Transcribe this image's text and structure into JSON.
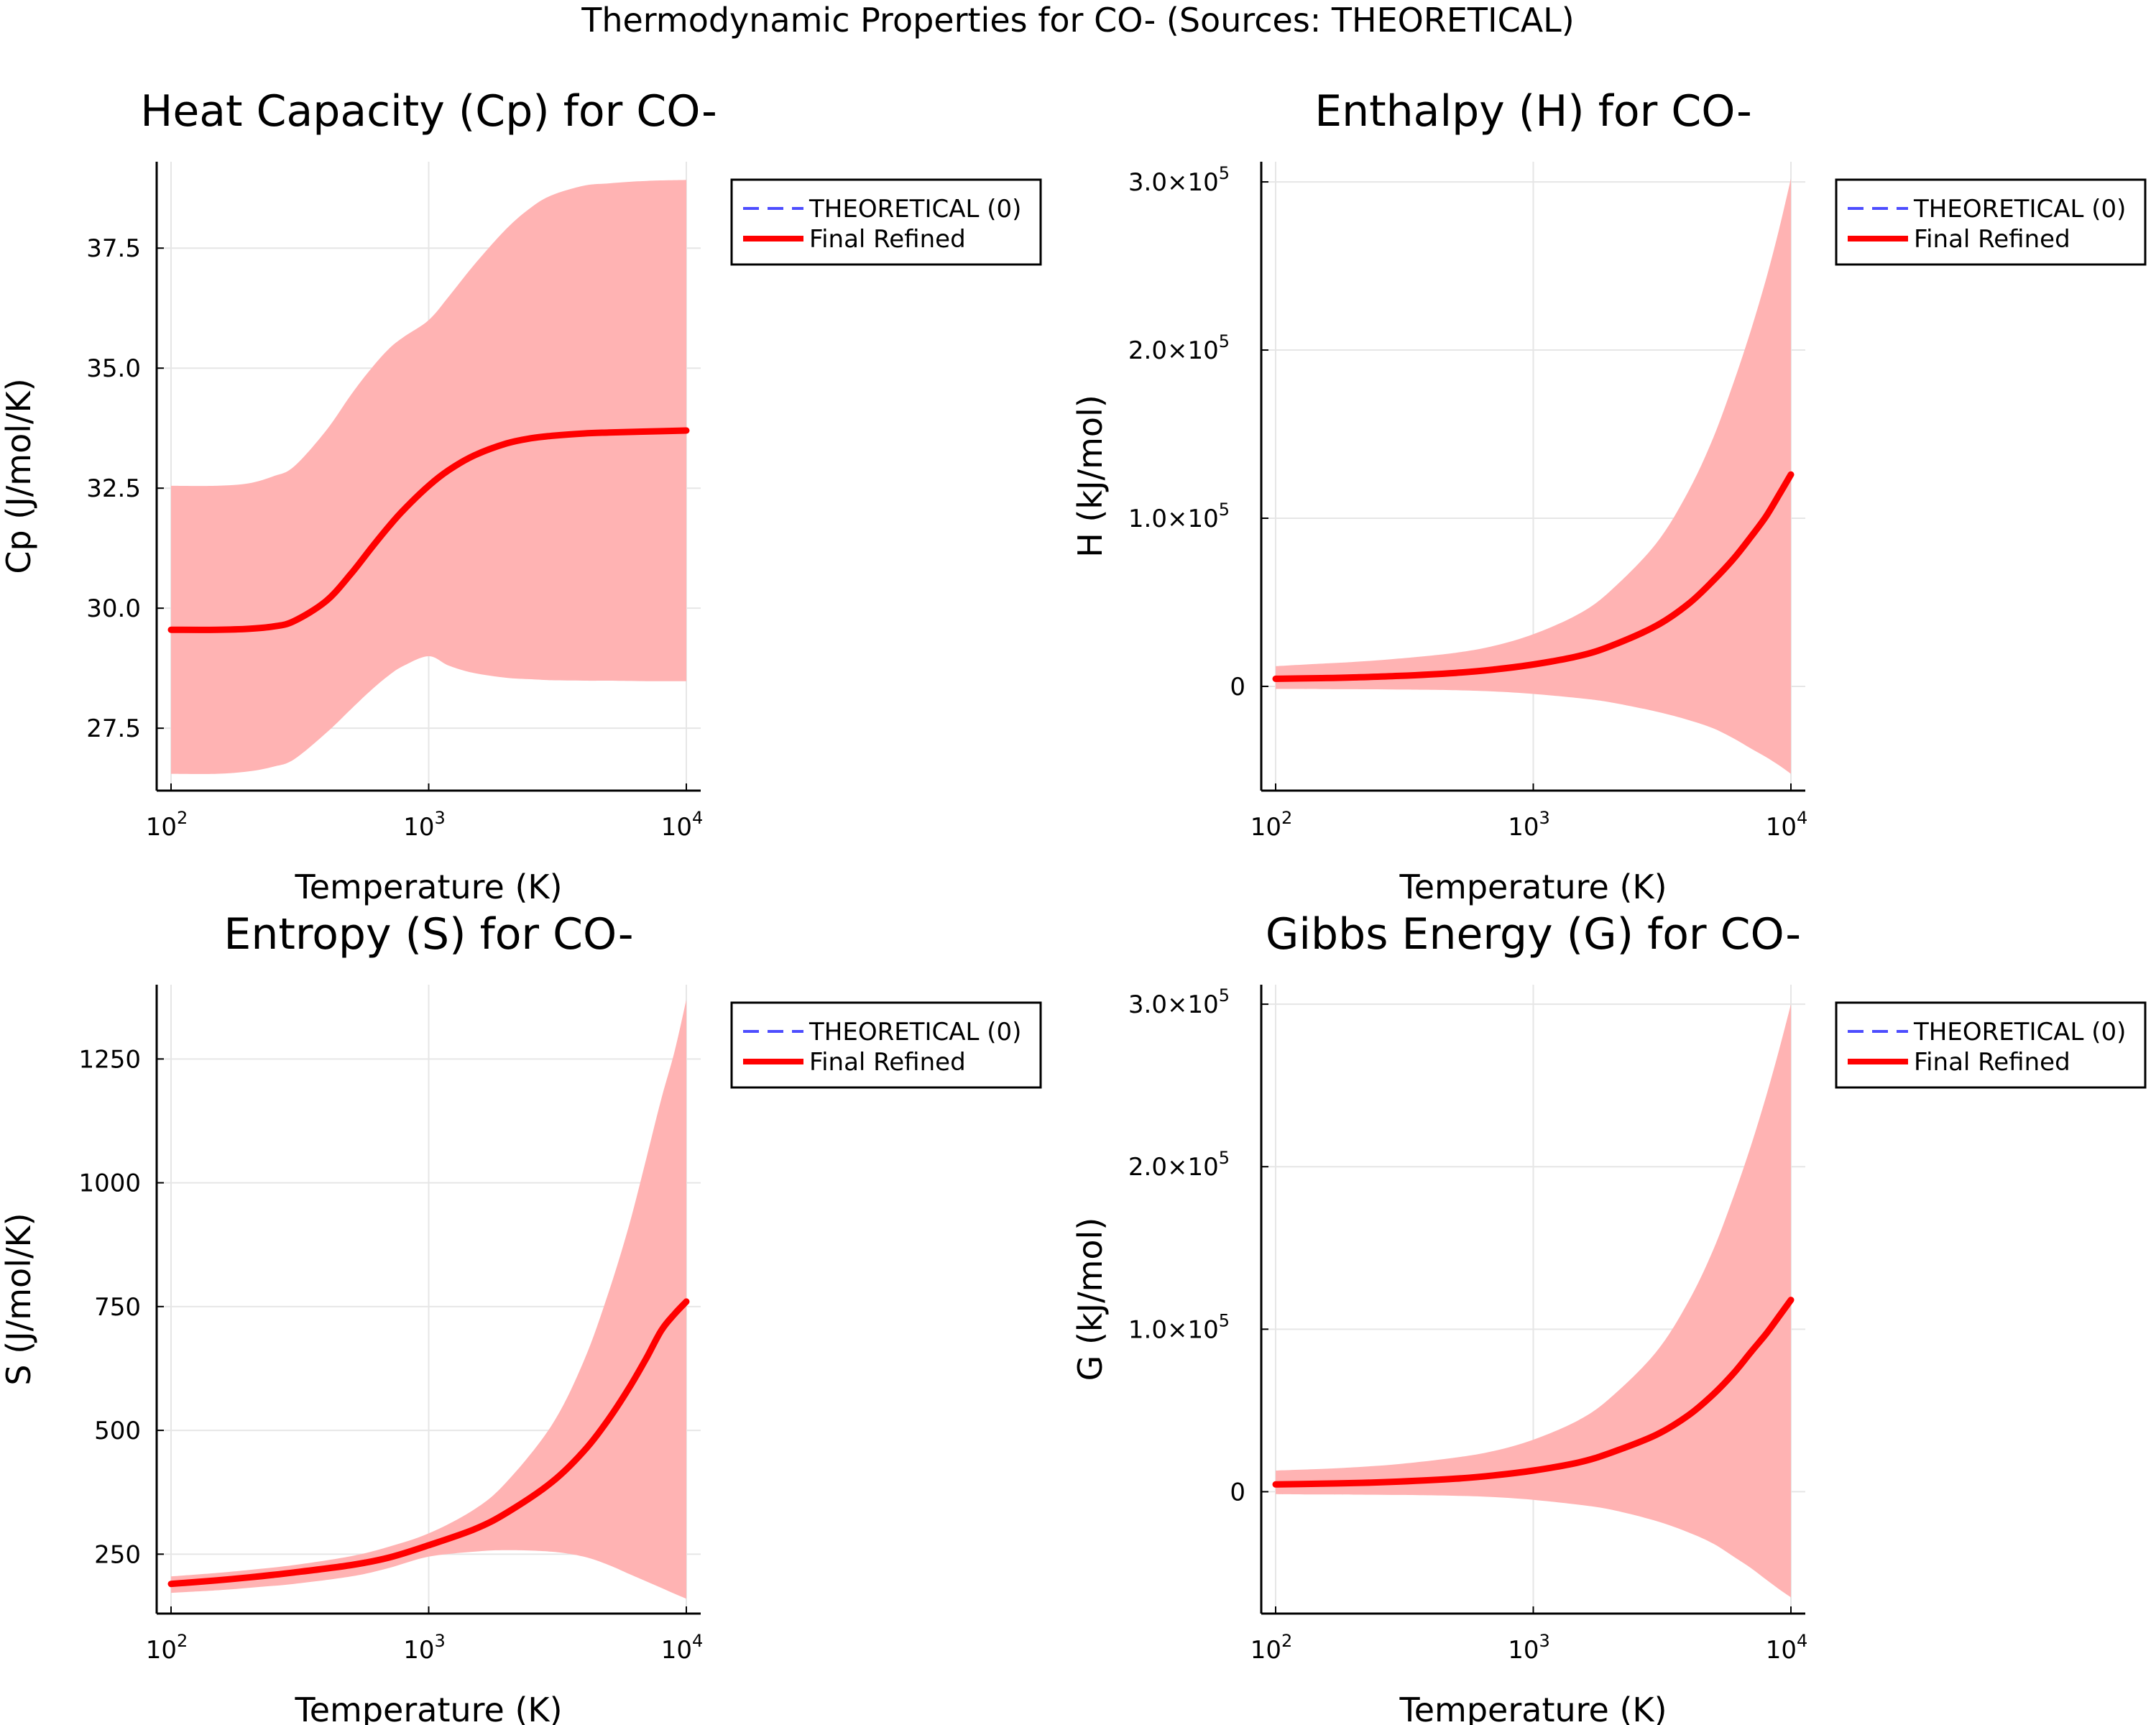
{
  "suptitle": "Thermodynamic Properties for CO- (Sources: THEORETICAL)",
  "colors": {
    "refined": "#ff0000",
    "band": "#ffb3b3",
    "theoretical": "#4d4dff",
    "grid": "#e6e6e6"
  },
  "legend_position": "outer-top-right",
  "chart_data": [
    {
      "type": "line",
      "title": "Heat Capacity (Cp) for CO-",
      "xlabel": "Temperature (K)",
      "ylabel": "Cp (J/mol/K)",
      "xscale": "log",
      "xlim": [
        100,
        10000
      ],
      "ylim": [
        26.2,
        39.3
      ],
      "xticks": [
        {
          "base": "10",
          "exp": "2"
        },
        {
          "base": "10",
          "exp": "3"
        },
        {
          "base": "10",
          "exp": "4"
        }
      ],
      "yticks": [
        {
          "v": 27.5,
          "label": "27.5"
        },
        {
          "v": 30.0,
          "label": "30.0"
        },
        {
          "v": 32.5,
          "label": "32.5"
        },
        {
          "v": 35.0,
          "label": "35.0"
        },
        {
          "v": 37.5,
          "label": "37.5"
        }
      ],
      "grid": true,
      "legend": [
        "THEORETICAL (0)",
        "Final Refined"
      ],
      "series": [
        {
          "name": "Final Refined",
          "style": "solid",
          "x": [
            100,
            150,
            200,
            250,
            300,
            400,
            500,
            600,
            700,
            800,
            1000,
            1200,
            1500,
            2000,
            2500,
            3000,
            4000,
            5000,
            7000,
            10000
          ],
          "y": [
            29.55,
            29.55,
            29.57,
            29.62,
            29.73,
            30.15,
            30.72,
            31.26,
            31.7,
            32.05,
            32.55,
            32.88,
            33.18,
            33.43,
            33.54,
            33.59,
            33.64,
            33.66,
            33.68,
            33.7
          ]
        },
        {
          "name": "THEORETICAL (0)",
          "style": "dashed",
          "x": [],
          "y": []
        }
      ],
      "band": {
        "x": [
          100,
          150,
          200,
          250,
          300,
          400,
          500,
          600,
          700,
          800,
          1000,
          1200,
          1500,
          2000,
          2500,
          3000,
          4000,
          5000,
          7000,
          10000
        ],
        "upper": [
          32.55,
          32.55,
          32.6,
          32.75,
          32.95,
          33.7,
          34.45,
          35.0,
          35.4,
          35.65,
          36.0,
          36.5,
          37.15,
          37.9,
          38.35,
          38.6,
          38.8,
          38.85,
          38.9,
          38.92
        ],
        "lower": [
          26.55,
          26.55,
          26.6,
          26.7,
          26.85,
          27.4,
          27.9,
          28.3,
          28.6,
          28.8,
          29.0,
          28.8,
          28.65,
          28.55,
          28.52,
          28.5,
          28.49,
          28.49,
          28.48,
          28.48
        ]
      }
    },
    {
      "type": "line",
      "title": "Enthalpy (H) for CO-",
      "xlabel": "Temperature (K)",
      "ylabel": "H (kJ/mol)",
      "xscale": "log",
      "xlim": [
        100,
        10000
      ],
      "ylim": [
        -62000,
        312000
      ],
      "xticks": [
        {
          "base": "10",
          "exp": "2"
        },
        {
          "base": "10",
          "exp": "3"
        },
        {
          "base": "10",
          "exp": "4"
        }
      ],
      "yticks": [
        {
          "v": 0,
          "label": "0"
        },
        {
          "v": 100000,
          "label": "1.0×10",
          "sup": "5"
        },
        {
          "v": 200000,
          "label": "2.0×10",
          "sup": "5"
        },
        {
          "v": 300000,
          "label": "3.0×10",
          "sup": "5"
        }
      ],
      "grid": true,
      "legend": [
        "THEORETICAL (0)",
        "Final Refined"
      ],
      "series": [
        {
          "name": "Final Refined",
          "style": "solid",
          "x": [
            100,
            150,
            200,
            300,
            500,
            700,
            1000,
            1500,
            2000,
            3000,
            4000,
            5000,
            6000,
            7000,
            8000,
            9000,
            10000
          ],
          "y": [
            4500,
            4900,
            5300,
            6200,
            8000,
            10000,
            13000,
            18000,
            24000,
            36000,
            49000,
            63000,
            76000,
            89000,
            101000,
            114000,
            126000
          ]
        },
        {
          "name": "THEORETICAL (0)",
          "style": "dashed",
          "x": [],
          "y": []
        }
      ],
      "band": {
        "x": [
          100,
          150,
          200,
          300,
          500,
          700,
          1000,
          1500,
          2000,
          3000,
          4000,
          5000,
          6000,
          7000,
          8000,
          9000,
          10000
        ],
        "upper": [
          12000,
          13500,
          14500,
          16500,
          20000,
          24000,
          31000,
          43000,
          57000,
          85000,
          116000,
          148000,
          181000,
          212000,
          242000,
          272000,
          302000
        ],
        "lower": [
          -1500,
          -1600,
          -1700,
          -1900,
          -2300,
          -3000,
          -4500,
          -7000,
          -9500,
          -15000,
          -20000,
          -25000,
          -31000,
          -37000,
          -42000,
          -47000,
          -52000
        ]
      }
    },
    {
      "type": "line",
      "title": "Entropy (S) for CO-",
      "xlabel": "Temperature (K)",
      "ylabel": "S (J/mol/K)",
      "xscale": "log",
      "xlim": [
        100,
        10000
      ],
      "ylim": [
        130,
        1400
      ],
      "xticks": [
        {
          "base": "10",
          "exp": "2"
        },
        {
          "base": "10",
          "exp": "3"
        },
        {
          "base": "10",
          "exp": "4"
        }
      ],
      "yticks": [
        {
          "v": 250,
          "label": "250"
        },
        {
          "v": 500,
          "label": "500"
        },
        {
          "v": 750,
          "label": "750"
        },
        {
          "v": 1000,
          "label": "1000"
        },
        {
          "v": 1250,
          "label": "1250"
        }
      ],
      "grid": true,
      "legend": [
        "THEORETICAL (0)",
        "Final Refined"
      ],
      "series": [
        {
          "name": "Final Refined",
          "style": "solid",
          "x": [
            100,
            150,
            200,
            300,
            500,
            700,
            1000,
            1500,
            2000,
            3000,
            4000,
            5000,
            6000,
            7000,
            8000,
            9000,
            10000
          ],
          "y": [
            190,
            197,
            203,
            213,
            228,
            243,
            268,
            300,
            333,
            395,
            458,
            523,
            586,
            646,
            702,
            735,
            760
          ]
        },
        {
          "name": "THEORETICAL (0)",
          "style": "dashed",
          "x": [],
          "y": []
        }
      ],
      "band": {
        "x": [
          100,
          150,
          200,
          300,
          500,
          700,
          1000,
          1500,
          2000,
          3000,
          4000,
          5000,
          6000,
          7000,
          8000,
          9000,
          10000
        ],
        "upper": [
          205,
          212,
          218,
          228,
          246,
          265,
          292,
          340,
          395,
          510,
          640,
          780,
          915,
          1050,
          1170,
          1265,
          1370
        ],
        "lower": [
          172,
          177,
          182,
          190,
          205,
          222,
          245,
          255,
          258,
          255,
          245,
          228,
          210,
          195,
          182,
          170,
          160
        ]
      }
    },
    {
      "type": "line",
      "title": "Gibbs Energy (G) for CO-",
      "xlabel": "Temperature (K)",
      "ylabel": "G (kJ/mol)",
      "xscale": "log",
      "xlim": [
        100,
        10000
      ],
      "ylim": [
        -75000,
        312000
      ],
      "xticks": [
        {
          "base": "10",
          "exp": "2"
        },
        {
          "base": "10",
          "exp": "3"
        },
        {
          "base": "10",
          "exp": "4"
        }
      ],
      "yticks": [
        {
          "v": 0,
          "label": "0"
        },
        {
          "v": 100000,
          "label": "1.0×10",
          "sup": "5"
        },
        {
          "v": 200000,
          "label": "2.0×10",
          "sup": "5"
        },
        {
          "v": 300000,
          "label": "3.0×10",
          "sup": "5"
        }
      ],
      "grid": true,
      "legend": [
        "THEORETICAL (0)",
        "Final Refined"
      ],
      "series": [
        {
          "name": "Final Refined",
          "style": "solid",
          "x": [
            100,
            150,
            200,
            300,
            500,
            700,
            1000,
            1500,
            2000,
            3000,
            4000,
            5000,
            6000,
            7000,
            8000,
            9000,
            10000
          ],
          "y": [
            4500,
            4900,
            5300,
            6200,
            8000,
            10000,
            13000,
            18000,
            24000,
            35000,
            47000,
            60000,
            73000,
            86000,
            97000,
            108000,
            118000
          ]
        },
        {
          "name": "THEORETICAL (0)",
          "style": "dashed",
          "x": [],
          "y": []
        }
      ],
      "band": {
        "x": [
          100,
          150,
          200,
          300,
          500,
          700,
          1000,
          1500,
          2000,
          3000,
          4000,
          5000,
          6000,
          7000,
          8000,
          9000,
          10000
        ],
        "upper": [
          13000,
          14000,
          15000,
          17000,
          21000,
          25000,
          32000,
          44000,
          58000,
          86000,
          117000,
          149000,
          182000,
          213000,
          243000,
          272000,
          300000
        ],
        "lower": [
          -1500,
          -1700,
          -1800,
          -2000,
          -2500,
          -3300,
          -5000,
          -8000,
          -11000,
          -18000,
          -25000,
          -32000,
          -40000,
          -47000,
          -54000,
          -60000,
          -65000
        ]
      }
    }
  ]
}
